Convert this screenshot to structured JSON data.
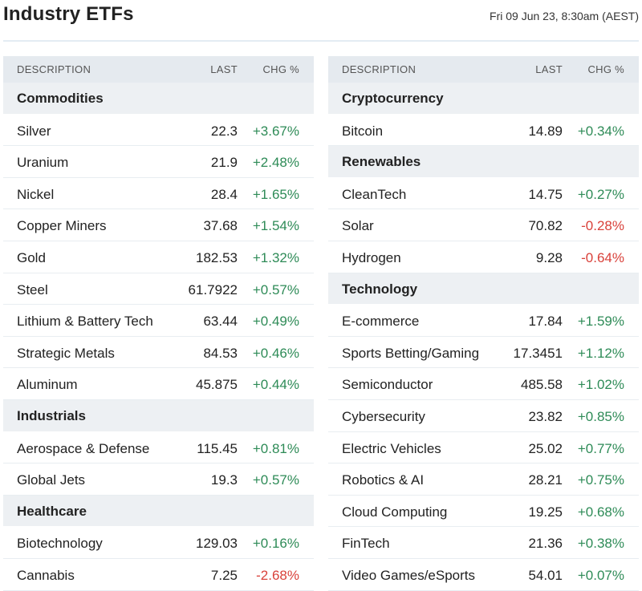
{
  "header": {
    "title": "Industry ETFs",
    "timestamp": "Fri 09 Jun 23, 8:30am (AEST)"
  },
  "columns": {
    "description": "DESCRIPTION",
    "last": "LAST",
    "chg": "CHG %"
  },
  "colors": {
    "up": "#2e8b57",
    "down": "#d9413a",
    "header_bg": "#e5eaef"
  },
  "left": [
    {
      "category": "Commodities",
      "items": [
        {
          "name": "Silver",
          "last": "22.3",
          "chg": "+3.67%"
        },
        {
          "name": "Uranium",
          "last": "21.9",
          "chg": "+2.48%"
        },
        {
          "name": "Nickel",
          "last": "28.4",
          "chg": "+1.65%"
        },
        {
          "name": "Copper Miners",
          "last": "37.68",
          "chg": "+1.54%"
        },
        {
          "name": "Gold",
          "last": "182.53",
          "chg": "+1.32%"
        },
        {
          "name": "Steel",
          "last": "61.7922",
          "chg": "+0.57%"
        },
        {
          "name": "Lithium & Battery Tech",
          "last": "63.44",
          "chg": "+0.49%"
        },
        {
          "name": "Strategic Metals",
          "last": "84.53",
          "chg": "+0.46%"
        },
        {
          "name": "Aluminum",
          "last": "45.875",
          "chg": "+0.44%"
        }
      ]
    },
    {
      "category": "Industrials",
      "items": [
        {
          "name": "Aerospace & Defense",
          "last": "115.45",
          "chg": "+0.81%"
        },
        {
          "name": "Global Jets",
          "last": "19.3",
          "chg": "+0.57%"
        }
      ]
    },
    {
      "category": "Healthcare",
      "items": [
        {
          "name": "Biotechnology",
          "last": "129.03",
          "chg": "+0.16%"
        },
        {
          "name": "Cannabis",
          "last": "7.25",
          "chg": "-2.68%"
        }
      ]
    }
  ],
  "right": [
    {
      "category": "Cryptocurrency",
      "items": [
        {
          "name": "Bitcoin",
          "last": "14.89",
          "chg": "+0.34%"
        }
      ]
    },
    {
      "category": "Renewables",
      "items": [
        {
          "name": "CleanTech",
          "last": "14.75",
          "chg": "+0.27%"
        },
        {
          "name": "Solar",
          "last": "70.82",
          "chg": "-0.28%"
        },
        {
          "name": "Hydrogen",
          "last": "9.28",
          "chg": "-0.64%"
        }
      ]
    },
    {
      "category": "Technology",
      "items": [
        {
          "name": "E-commerce",
          "last": "17.84",
          "chg": "+1.59%"
        },
        {
          "name": "Sports Betting/Gaming",
          "last": "17.3451",
          "chg": "+1.12%"
        },
        {
          "name": "Semiconductor",
          "last": "485.58",
          "chg": "+1.02%"
        },
        {
          "name": "Cybersecurity",
          "last": "23.82",
          "chg": "+0.85%"
        },
        {
          "name": "Electric Vehicles",
          "last": "25.02",
          "chg": "+0.77%"
        },
        {
          "name": "Robotics & AI",
          "last": "28.21",
          "chg": "+0.75%"
        },
        {
          "name": "Cloud Computing",
          "last": "19.25",
          "chg": "+0.68%"
        },
        {
          "name": "FinTech",
          "last": "21.36",
          "chg": "+0.38%"
        },
        {
          "name": "Video Games/eSports",
          "last": "54.01",
          "chg": "+0.07%"
        }
      ]
    }
  ]
}
